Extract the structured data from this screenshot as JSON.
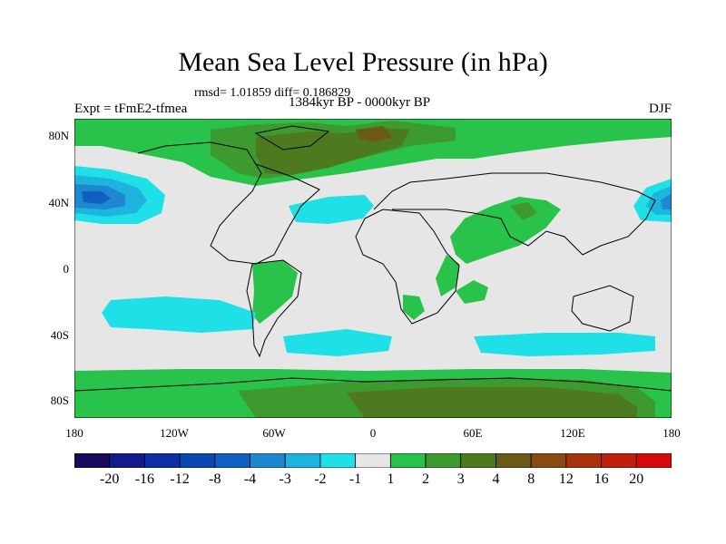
{
  "title": "Mean Sea Level Pressure (in hPa)",
  "stats": "rmsd= 1.01859 diff= 0.186829",
  "period": "1384kyr BP - 0000kyr BP",
  "experiment": "Expt = tFmE2-tfmea",
  "season": "DJF",
  "lat_ticks": [
    "80N",
    "40N",
    "0",
    "40S",
    "80S"
  ],
  "lon_ticks": [
    "180",
    "120W",
    "60W",
    "0",
    "60E",
    "120E",
    "180"
  ],
  "colorbar": {
    "labels": [
      "-20",
      "-16",
      "-12",
      "-8",
      "-4",
      "-3",
      "-2",
      "-1",
      "1",
      "2",
      "3",
      "4",
      "8",
      "12",
      "16",
      "20"
    ],
    "colors": [
      "#1a0a5e",
      "#141a8c",
      "#0d2fa6",
      "#0b47b0",
      "#1060c0",
      "#1f86d0",
      "#1eb4e0",
      "#1ee0e6",
      "#e6e6e6",
      "#29c24a",
      "#3c9a2e",
      "#4d7a1f",
      "#6b5a18",
      "#8a4a12",
      "#a8320e",
      "#c21e0c",
      "#d60a0a"
    ]
  },
  "colors": {
    "background": "#e6e6e6",
    "coast": "#000000"
  }
}
